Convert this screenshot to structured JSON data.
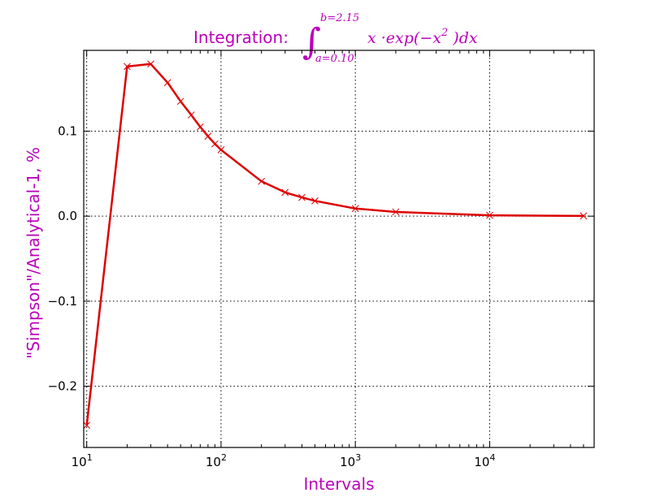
{
  "chart_data": {
    "type": "line",
    "title": {
      "prefix": "Integration: ",
      "upper_limit": "b=2.15",
      "lower_limit": "a=0.10",
      "integrand": "x ·exp(−x",
      "exponent": "2",
      "integrand_end": " )dx"
    },
    "xlabel": "Intervals",
    "ylabel": "\"Simpson\"/Analytical-1, %",
    "xscale": "log",
    "xlim": [
      9.5,
      60000
    ],
    "ylim": [
      -0.272,
      0.195
    ],
    "grid": true,
    "x_ticks": [
      {
        "value": 10,
        "base": "10",
        "exp": "1"
      },
      {
        "value": 100,
        "base": "10",
        "exp": "2"
      },
      {
        "value": 1000,
        "base": "10",
        "exp": "3"
      },
      {
        "value": 10000,
        "base": "10",
        "exp": "4"
      }
    ],
    "y_ticks": [
      {
        "value": 0.1,
        "label": "0.1"
      },
      {
        "value": 0.0,
        "label": "0.0"
      },
      {
        "value": -0.1,
        "label": "−0.1"
      },
      {
        "value": -0.2,
        "label": "−0.2"
      }
    ],
    "series": [
      {
        "color": "#dd0000",
        "marker": "x",
        "x": [
          10,
          20,
          30,
          40,
          50,
          60,
          70,
          80,
          90,
          100,
          200,
          300,
          400,
          500,
          1000,
          2000,
          10000,
          50000
        ],
        "y": [
          -0.246,
          0.176,
          0.179,
          0.157,
          0.135,
          0.119,
          0.105,
          0.094,
          0.085,
          0.078,
          0.041,
          0.028,
          0.022,
          0.018,
          0.009,
          0.005,
          0.001,
          0.0003
        ]
      }
    ]
  }
}
